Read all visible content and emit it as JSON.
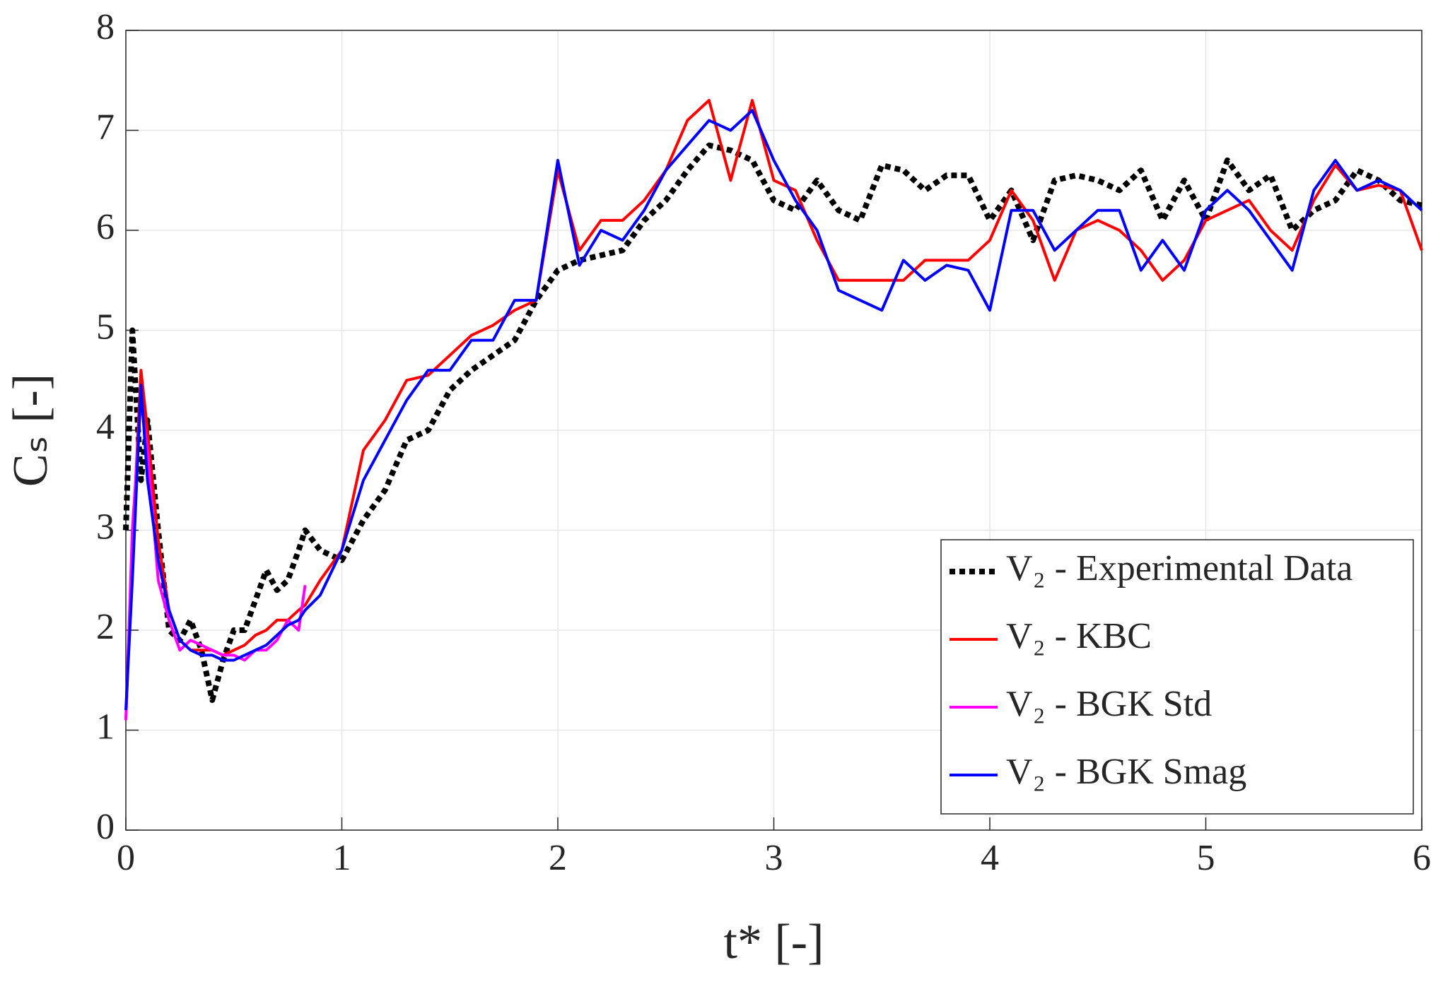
{
  "chart_data": {
    "type": "line",
    "xlabel": "t* [-]",
    "ylabel": "Cₛ [-]",
    "x": [
      0,
      0.03,
      0.07,
      0.1,
      0.15,
      0.2,
      0.25,
      0.3,
      0.35,
      0.4,
      0.45,
      0.5,
      0.55,
      0.6,
      0.65,
      0.7,
      0.75,
      0.8,
      0.83,
      0.9,
      1.0,
      1.1,
      1.2,
      1.3,
      1.4,
      1.5,
      1.6,
      1.7,
      1.8,
      1.9,
      2.0,
      2.1,
      2.2,
      2.3,
      2.4,
      2.5,
      2.6,
      2.7,
      2.8,
      2.9,
      3.0,
      3.1,
      3.2,
      3.3,
      3.4,
      3.5,
      3.6,
      3.7,
      3.8,
      3.9,
      4.0,
      4.1,
      4.2,
      4.3,
      4.4,
      4.5,
      4.6,
      4.7,
      4.8,
      4.9,
      5.0,
      5.1,
      5.2,
      5.3,
      5.4,
      5.5,
      5.6,
      5.7,
      5.8,
      5.9,
      6.0
    ],
    "series": [
      {
        "name": "V₂ - Experimental Data",
        "color": "#000000",
        "dash": true,
        "values": [
          3.0,
          5.0,
          3.5,
          4.1,
          3.0,
          2.0,
          1.9,
          2.1,
          1.8,
          1.3,
          1.7,
          2.0,
          2.0,
          2.3,
          2.6,
          2.4,
          2.5,
          2.8,
          3.0,
          2.8,
          2.7,
          3.1,
          3.4,
          3.9,
          4.0,
          4.4,
          4.6,
          4.75,
          4.9,
          5.3,
          5.6,
          5.7,
          5.75,
          5.8,
          6.1,
          6.3,
          6.6,
          6.85,
          6.8,
          6.7,
          6.3,
          6.2,
          6.5,
          6.2,
          6.1,
          6.65,
          6.6,
          6.4,
          6.55,
          6.55,
          6.1,
          6.4,
          5.9,
          6.5,
          6.55,
          6.5,
          6.4,
          6.6,
          6.1,
          6.5,
          6.1,
          6.7,
          6.4,
          6.55,
          6.0,
          6.2,
          6.3,
          6.6,
          6.5,
          6.3,
          6.25
        ]
      },
      {
        "name": "V₂ - KBC",
        "color": "#ff0000",
        "dash": false,
        "values": [
          1.1,
          2.8,
          4.6,
          4.0,
          2.9,
          2.2,
          1.9,
          1.8,
          1.8,
          1.8,
          1.75,
          1.8,
          1.85,
          1.95,
          2.0,
          2.1,
          2.1,
          2.2,
          2.25,
          2.5,
          2.8,
          3.8,
          4.1,
          4.5,
          4.55,
          4.75,
          4.95,
          5.05,
          5.2,
          5.3,
          6.6,
          5.8,
          6.1,
          6.1,
          6.3,
          6.6,
          7.1,
          7.3,
          6.5,
          7.3,
          6.5,
          6.4,
          5.9,
          5.5,
          5.5,
          5.5,
          5.5,
          5.7,
          5.7,
          5.7,
          5.9,
          6.4,
          6.1,
          5.5,
          6.0,
          6.1,
          6.0,
          5.8,
          5.5,
          5.7,
          6.1,
          6.2,
          6.3,
          6.0,
          5.8,
          6.3,
          6.65,
          6.4,
          6.45,
          6.4,
          5.8
        ]
      },
      {
        "name": "V₂ - BGK Std",
        "color": "#ff00ff",
        "dash": false,
        "values": [
          1.1,
          3.0,
          4.3,
          3.8,
          2.5,
          2.1,
          1.8,
          1.9,
          1.85,
          1.8,
          1.75,
          1.75,
          1.7,
          1.8,
          1.8,
          1.9,
          2.1,
          2.0,
          2.45,
          null,
          null,
          null,
          null,
          null,
          null,
          null,
          null,
          null,
          null,
          null,
          null,
          null,
          null,
          null,
          null,
          null,
          null,
          null,
          null,
          null,
          null,
          null,
          null,
          null,
          null,
          null,
          null,
          null,
          null,
          null,
          null,
          null,
          null,
          null,
          null,
          null,
          null,
          null,
          null,
          null,
          null,
          null,
          null,
          null,
          null,
          null,
          null,
          null,
          null,
          null,
          null
        ]
      },
      {
        "name": "V₂ - BGK Smag",
        "color": "#0000ff",
        "dash": false,
        "values": [
          1.2,
          2.5,
          4.45,
          3.5,
          2.7,
          2.2,
          1.9,
          1.8,
          1.75,
          1.75,
          1.7,
          1.7,
          1.75,
          1.8,
          1.85,
          1.95,
          2.05,
          2.1,
          2.2,
          2.35,
          2.8,
          3.5,
          3.9,
          4.3,
          4.6,
          4.6,
          4.9,
          4.9,
          5.3,
          5.3,
          6.7,
          5.65,
          6.0,
          5.9,
          6.2,
          6.6,
          6.85,
          7.1,
          7.0,
          7.2,
          6.7,
          6.3,
          6.0,
          5.4,
          5.3,
          5.2,
          5.7,
          5.5,
          5.65,
          5.6,
          5.2,
          6.2,
          6.2,
          5.8,
          6.0,
          6.2,
          6.2,
          5.6,
          5.9,
          5.6,
          6.2,
          6.4,
          6.2,
          5.9,
          5.6,
          6.4,
          6.7,
          6.4,
          6.5,
          6.4,
          6.2
        ]
      }
    ],
    "xlim": [
      0,
      6
    ],
    "xticks": [
      0,
      1,
      2,
      3,
      4,
      5,
      6
    ],
    "ylim": [
      0,
      8
    ],
    "yticks": [
      0,
      1,
      2,
      3,
      4,
      5,
      6,
      7,
      8
    ],
    "grid": true,
    "legend": "southeast"
  }
}
